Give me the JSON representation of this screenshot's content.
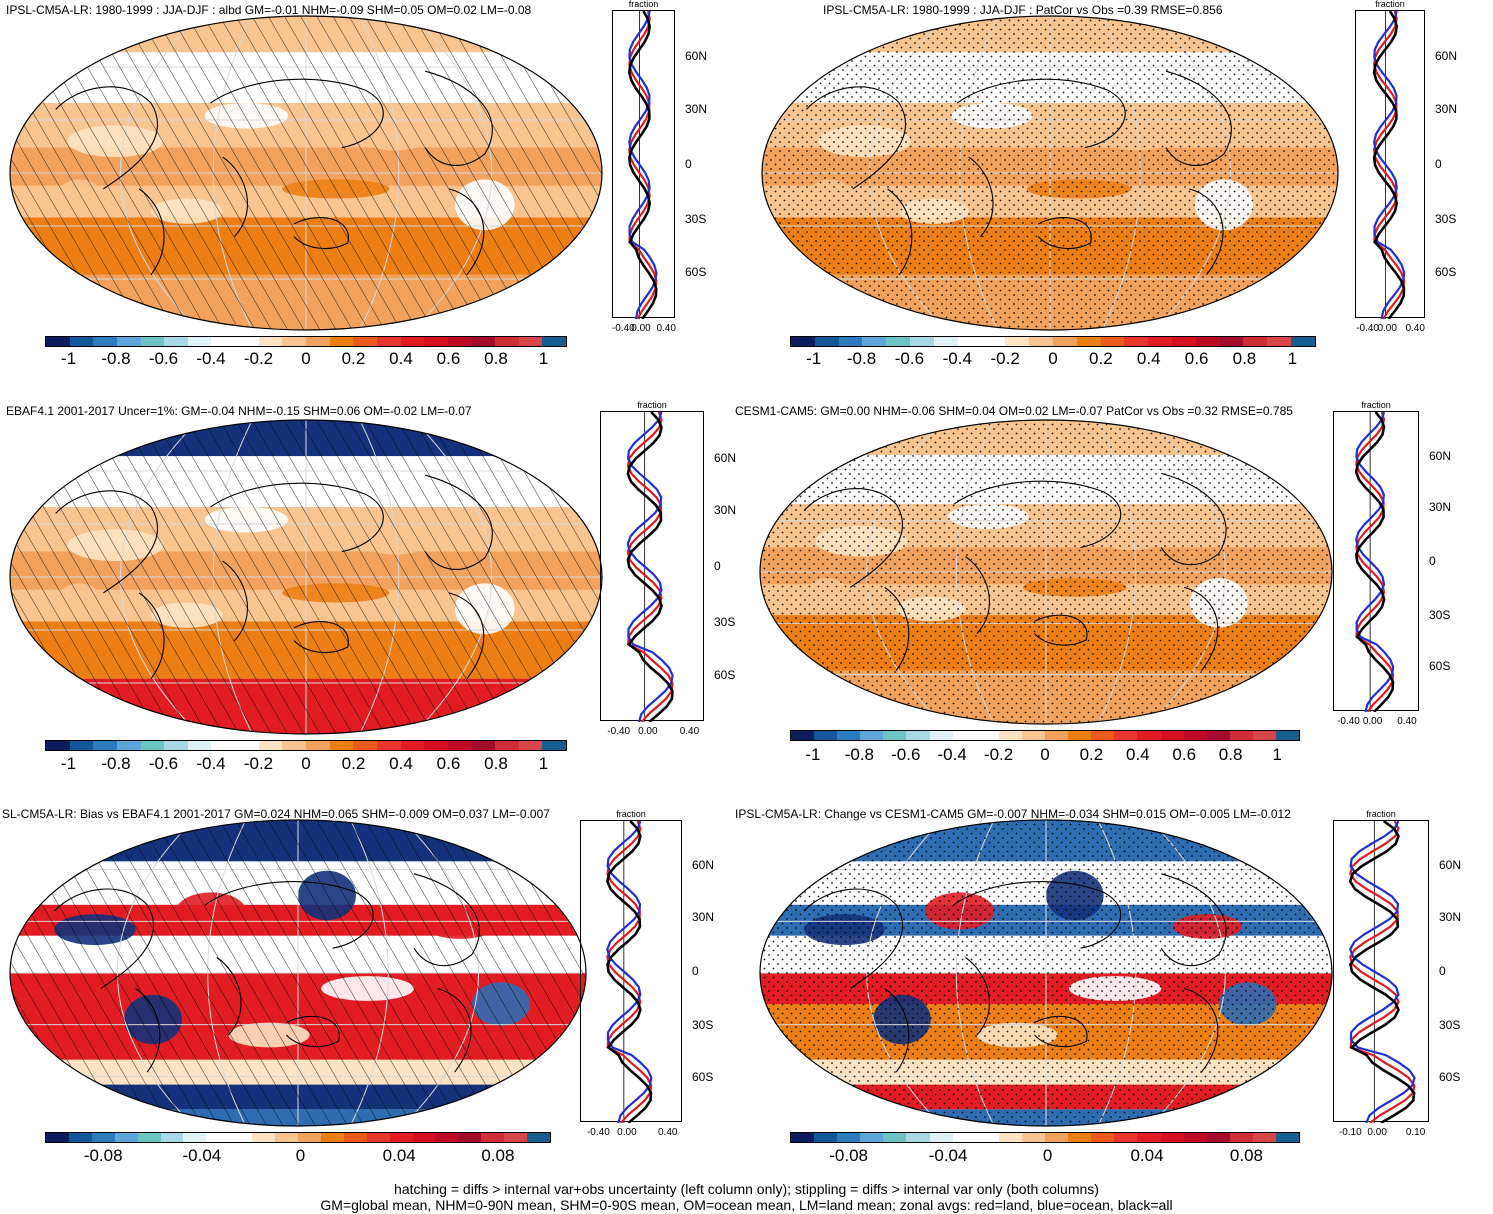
{
  "panels": [
    {
      "id": "p1",
      "title": "IPSL-CM5A-LR: 1980-1999 : JJA-DJF : albd GM=-0.01 NHM=-0.09 SHM=0.05 OM=0.02 LM=-0.08",
      "colorbar_labels": [
        "-1",
        "-0.8",
        "-0.6",
        "-0.4",
        "-0.2",
        "0",
        "0.2",
        "0.4",
        "0.6",
        "0.8",
        "1"
      ],
      "zonal_x_labels": [
        "-0.40",
        "0.00",
        "0.40"
      ],
      "zonal_title": "fraction",
      "lat_labels": [
        "60N",
        "30N",
        "0",
        "30S",
        "60S"
      ],
      "overlay": "hatching",
      "palette": "main"
    },
    {
      "id": "p2",
      "title": "IPSL-CM5A-LR: 1980-1999 : JJA-DJF : PatCor vs Obs =0.39 RMSE=0.856",
      "colorbar_labels": [
        "-1",
        "-0.8",
        "-0.6",
        "-0.4",
        "-0.2",
        "0",
        "0.2",
        "0.4",
        "0.6",
        "0.8",
        "1"
      ],
      "zonal_x_labels": [
        "-0.40",
        "0.00",
        "0.40"
      ],
      "zonal_title": "fraction",
      "lat_labels": [
        "60N",
        "30N",
        "0",
        "30S",
        "60S"
      ],
      "overlay": "stipple",
      "palette": "main"
    },
    {
      "id": "p3",
      "title": "EBAF4.1 2001-2017 Uncer=1%: GM=-0.04 NHM=-0.15 SHM=0.06 OM=-0.02 LM=-0.07",
      "colorbar_labels": [
        "-1",
        "-0.8",
        "-0.6",
        "-0.4",
        "-0.2",
        "0",
        "0.2",
        "0.4",
        "0.6",
        "0.8",
        "1"
      ],
      "zonal_x_labels": [
        "-0.40",
        "0.00",
        "0.40"
      ],
      "zonal_title": "fraction",
      "lat_labels": [
        "60N",
        "30N",
        "0",
        "30S",
        "60S"
      ],
      "overlay": "hatching",
      "palette": "main"
    },
    {
      "id": "p4",
      "title": "CESM1-CAM5: GM=0.00 NHM=-0.06 SHM=0.04 OM=0.02 LM=-0.07 PatCor vs Obs =0.32 RMSE=0.785",
      "colorbar_labels": [
        "-1",
        "-0.8",
        "-0.6",
        "-0.4",
        "-0.2",
        "0",
        "0.2",
        "0.4",
        "0.6",
        "0.8",
        "1"
      ],
      "zonal_x_labels": [
        "-0.40",
        "0.00",
        "0.40"
      ],
      "zonal_title": "fraction",
      "lat_labels": [
        "60N",
        "30N",
        "0",
        "30S",
        "60S"
      ],
      "overlay": "stipple",
      "palette": "main"
    },
    {
      "id": "p5",
      "title": "SL-CM5A-LR: Bias vs EBAF4.1 2001-2017 GM=0.024 NHM=0.065 SHM=-0.009 OM=0.037 LM=-0.007",
      "colorbar_labels": [
        "-0.08",
        "-0.04",
        "0",
        "0.04",
        "0.08"
      ],
      "zonal_x_labels": [
        "-0.40",
        "0.00",
        "0.40"
      ],
      "zonal_title": "fraction",
      "lat_labels": [
        "60N",
        "30N",
        "0",
        "30S",
        "60S"
      ],
      "overlay": "hatching",
      "palette": "diff"
    },
    {
      "id": "p6",
      "title": "IPSL-CM5A-LR: Change vs CESM1-CAM5 GM=-0.007 NHM=-0.034 SHM=0.015 OM=-0.005 LM=-0.012",
      "colorbar_labels": [
        "-0.08",
        "-0.04",
        "0",
        "0.04",
        "0.08"
      ],
      "zonal_x_labels": [
        "-0.10",
        "0.00",
        "0.10"
      ],
      "zonal_title": "fraction",
      "lat_labels": [
        "60N",
        "30N",
        "0",
        "30S",
        "60S"
      ],
      "overlay": "stipple",
      "palette": "diff"
    }
  ],
  "colorbar_colors": [
    "#0b1d5e",
    "#13569a",
    "#2c7bbf",
    "#5fa5d9",
    "#6cc4c4",
    "#a6d8e6",
    "#dff3f7",
    "#ffffff",
    "#ffffff",
    "#fde3c2",
    "#f8c48f",
    "#f2a25c",
    "#ec7f14",
    "#ea5a1a",
    "#e6372a",
    "#e11d23",
    "#d51020",
    "#bd0b24",
    "#a30b2a",
    "#cf2e36",
    "#d8464a",
    "#155e8f"
  ],
  "map_colors": {
    "ocean_orange": "#f2a25c",
    "light_orange": "#f8c48f",
    "pale": "#fde3c2",
    "white": "#ffffff",
    "dark_orange": "#ec7f14",
    "red": "#e11d23",
    "navy": "#13327a",
    "blue": "#2f6db3"
  },
  "zonal_line_colors": {
    "land": "#e31a1c",
    "ocean": "#1f2fd6",
    "all": "#000000"
  },
  "footnote": [
    "hatching = diffs > internal var+obs uncertainty (left column only); stippling = diffs > internal var only (both columns)",
    "GM=global mean, NHM=0-90N mean, SHM=0-90S mean, OM=ocean mean, LM=land mean; zonal avgs: red=land, blue=ocean, black=all"
  ]
}
